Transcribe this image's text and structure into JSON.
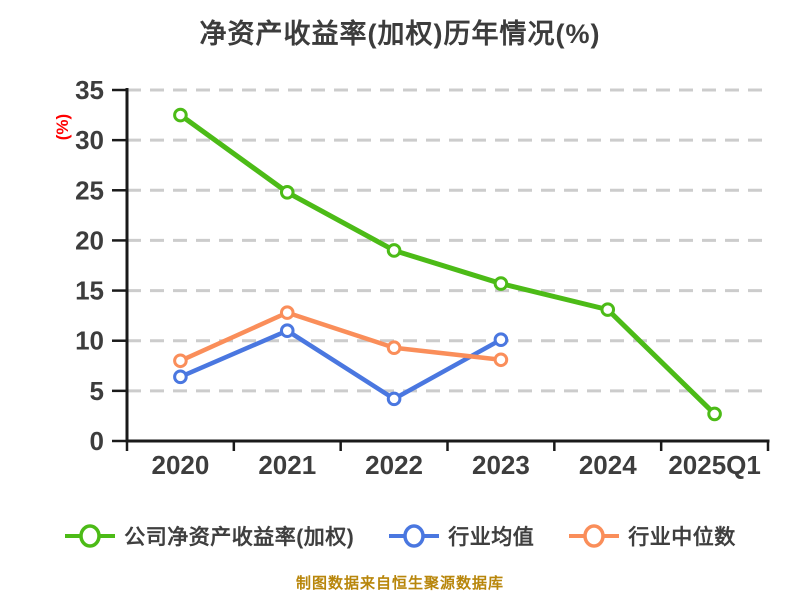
{
  "title": "净资产收益率(加权)历年情况(%)",
  "footer_note": "制图数据来自恒生聚源数据库",
  "colors": {
    "background": "#ffffff",
    "title_text": "#3c3c3c",
    "tick_text": "#3d3d3d",
    "legend_text": "#3f3f3f",
    "axis_line": "#1a1a1a",
    "grid_line": "#cccccc",
    "y_unit_label": "#ff0000",
    "footer_text": "#b8860b"
  },
  "chart_data": {
    "type": "line",
    "title": "净资产收益率(加权)历年情况(%)",
    "categories": [
      "2020",
      "2021",
      "2022",
      "2023",
      "2024",
      "2025Q1"
    ],
    "series": [
      {
        "name": "公司净资产收益率(加权)",
        "key": "company-roe-weighted",
        "color": "#4cbb17",
        "values": [
          32.5,
          24.8,
          19.0,
          15.7,
          13.1,
          2.7
        ]
      },
      {
        "name": "行业均值",
        "key": "industry-average",
        "color": "#4a77e0",
        "values": [
          6.4,
          11.0,
          4.2,
          10.1,
          null,
          null
        ]
      },
      {
        "name": "行业中位数",
        "key": "industry-median",
        "color": "#fa8e5a",
        "values": [
          8.0,
          12.8,
          9.3,
          8.1,
          null,
          null
        ]
      }
    ],
    "xlabel": "",
    "ylabel": "(%)",
    "ylim": [
      0,
      35
    ],
    "yticks": [
      0,
      5,
      10,
      15,
      20,
      25,
      30,
      35
    ],
    "grid": "horizontal-dashed",
    "legend_position": "bottom",
    "marker": "white-filled-circle"
  }
}
